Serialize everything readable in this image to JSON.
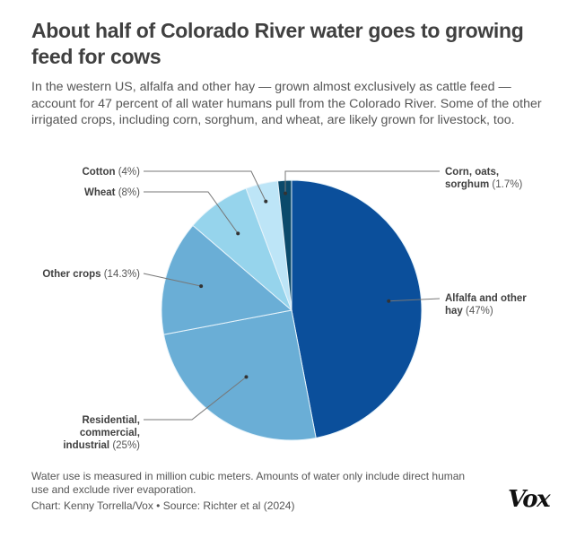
{
  "header": {
    "title": "About half of Colorado River water goes to growing feed for cows",
    "subtitle": "In the western US, alfalfa and other hay — grown almost exclusively as cattle feed — account for 47 percent of all water humans pull from the Colorado River. Some of the other irrigated crops, including corn, sorghum, and wheat, are likely grown for livestock, too."
  },
  "chart_data": {
    "type": "pie",
    "title": "About half of Colorado River water goes to growing feed for cows",
    "unit": "percent of water use",
    "start": "12 o'clock, clockwise",
    "slices": [
      {
        "name": "Alfalfa and other hay",
        "label_lines": [
          "Alfalfa and other",
          "hay"
        ],
        "value": 47,
        "pct_label": "(47%)",
        "color": "#0b4f9b"
      },
      {
        "name": "Residential, commercial, industrial",
        "label_lines": [
          "Residential,",
          "commercial,",
          "industrial"
        ],
        "value": 25,
        "pct_label": "(25%)",
        "color": "#6aaed6"
      },
      {
        "name": "Other crops",
        "label_lines": [
          "Other crops"
        ],
        "value": 14.3,
        "pct_label": "(14.3%)",
        "color": "#6aaed6"
      },
      {
        "name": "Wheat",
        "label_lines": [
          "Wheat"
        ],
        "value": 8,
        "pct_label": "(8%)",
        "color": "#96d4ec"
      },
      {
        "name": "Cotton",
        "label_lines": [
          "Cotton"
        ],
        "value": 4,
        "pct_label": "(4%)",
        "color": "#bde5f7"
      },
      {
        "name": "Corn, oats, sorghum",
        "label_lines": [
          "Corn, oats,",
          "sorghum"
        ],
        "value": 1.7,
        "pct_label": "(1.7%)",
        "color": "#0b4a6b"
      }
    ],
    "legend": "none (direct labels)"
  },
  "footer": {
    "note": "Water use is measured in million cubic meters. Amounts of water only include direct human use and exclude river evaporation.",
    "credit": "Chart: Kenny Torrella/Vox • Source: Richter et al (2024)",
    "logo": "Vox"
  }
}
